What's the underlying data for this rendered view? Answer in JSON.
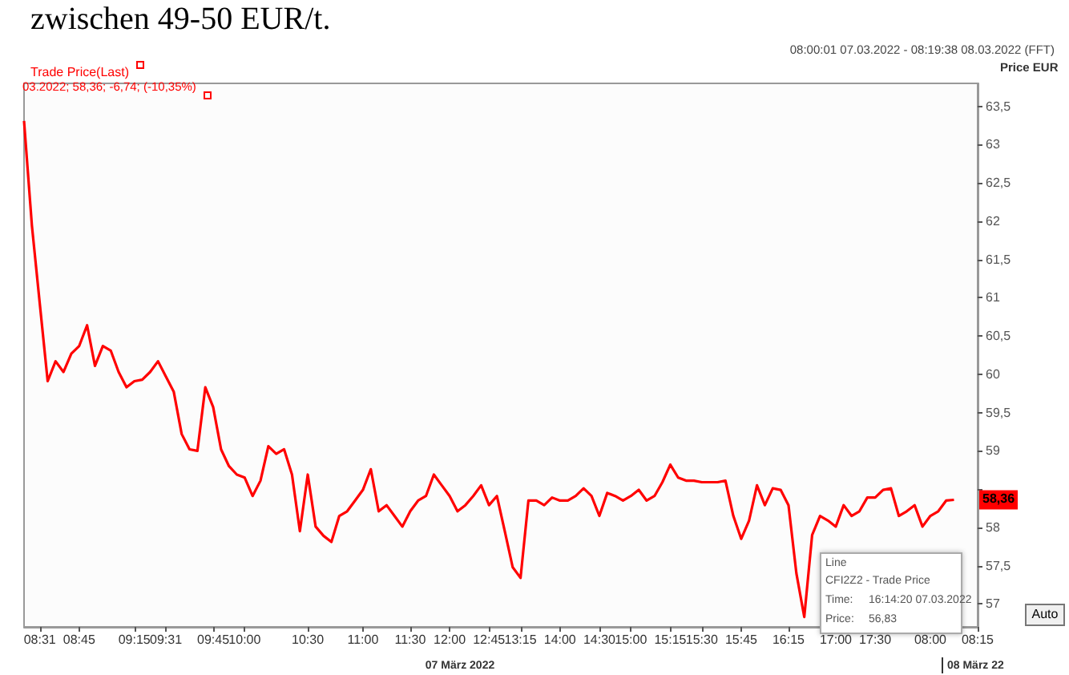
{
  "chart_data": {
    "type": "line",
    "title": "zwischen 49-50 EUR/t.",
    "subtitle": "08:00:01 07.03.2022 - 08:19:38 08.03.2022 (FFT)",
    "ylabel": "Price EUR",
    "categories": [
      null,
      null,
      "08:31",
      null,
      null,
      null,
      null,
      "08:45",
      null,
      null,
      null,
      null,
      null,
      null,
      "09:15",
      null,
      null,
      null,
      "09:31",
      null,
      null,
      null,
      null,
      null,
      "09:45",
      null,
      null,
      null,
      "10:00",
      null,
      null,
      null,
      null,
      null,
      null,
      null,
      "10:30",
      null,
      null,
      null,
      null,
      null,
      null,
      "11:00",
      null,
      null,
      null,
      null,
      null,
      "11:30",
      null,
      null,
      null,
      null,
      "12:00",
      null,
      null,
      null,
      null,
      "12:45",
      null,
      null,
      null,
      "13:15",
      null,
      null,
      null,
      null,
      "14:00",
      null,
      null,
      null,
      null,
      "14:30",
      null,
      null,
      null,
      "15:00",
      null,
      null,
      null,
      null,
      "15:15",
      null,
      null,
      null,
      "15:30",
      null,
      null,
      null,
      null,
      "15:45",
      null,
      null,
      null,
      null,
      null,
      "16:15",
      null,
      null,
      null,
      null,
      null,
      "17:00",
      null,
      null,
      null,
      null,
      "17:30",
      null,
      null,
      null,
      null,
      null,
      null,
      "08:00",
      null,
      null,
      null,
      null,
      null,
      "08:15"
    ],
    "series": [
      {
        "name": "Trade Price(Last)",
        "color": "#ff0000",
        "values": [
          63.31,
          61.94,
          60.92,
          59.91,
          60.17,
          60.03,
          60.27,
          60.37,
          60.64,
          60.11,
          60.37,
          60.31,
          60.03,
          59.83,
          59.91,
          59.93,
          60.03,
          60.17,
          59.97,
          59.77,
          59.22,
          59.02,
          59.0,
          59.83,
          59.57,
          59.02,
          58.8,
          58.69,
          58.65,
          58.41,
          58.61,
          59.06,
          58.96,
          59.02,
          58.69,
          57.95,
          58.69,
          58.01,
          57.89,
          57.81,
          58.15,
          58.21,
          58.35,
          58.49,
          58.76,
          58.21,
          58.29,
          58.15,
          58.01,
          58.21,
          58.35,
          58.41,
          58.69,
          58.55,
          58.41,
          58.21,
          58.29,
          58.41,
          58.55,
          58.29,
          58.41,
          57.95,
          57.48,
          57.34,
          58.35,
          58.35,
          58.29,
          58.39,
          58.35,
          58.35,
          58.41,
          58.51,
          58.41,
          58.15,
          58.45,
          58.41,
          58.35,
          58.41,
          58.49,
          58.35,
          58.41,
          58.59,
          58.82,
          58.65,
          58.61,
          58.61,
          58.59,
          58.59,
          58.59,
          58.61,
          58.15,
          57.85,
          58.09,
          58.55,
          58.29,
          58.51,
          58.49,
          58.29,
          57.4,
          56.83,
          57.9,
          58.15,
          58.09,
          58.01,
          58.29,
          58.15,
          58.21,
          58.39,
          58.39,
          58.49,
          58.51,
          58.15,
          58.21,
          58.29,
          58.01,
          58.15,
          58.21,
          58.35,
          58.36,
          null,
          null,
          null
        ]
      }
    ],
    "ylim": [
      56.7,
      63.8
    ],
    "yticks": [
      57,
      {
        "value": 57.5,
        "label": "57,5"
      },
      58,
      {
        "value": 58.5,
        "label": null
      },
      59,
      {
        "value": 59.5,
        "label": "59,5"
      },
      60,
      {
        "value": 60.5,
        "label": "60,5"
      },
      61,
      {
        "value": 61.5,
        "label": "61,5"
      },
      62,
      {
        "value": 62.5,
        "label": "62,5"
      },
      63,
      {
        "value": 63.5,
        "label": "63,5"
      }
    ],
    "legend": "top left",
    "grid": false,
    "annotations": [
      "03.2022; 58,36; -6,74; (-10,35%)",
      {
        "text": "58,36",
        "y": 58.36
      },
      "Line",
      "CFI2Z2 - Trade Price",
      "Time:",
      "16:14:20 07.03.2022",
      "Price:",
      "56,83",
      "07 März 2022",
      "08 März 22",
      "Auto"
    ]
  }
}
